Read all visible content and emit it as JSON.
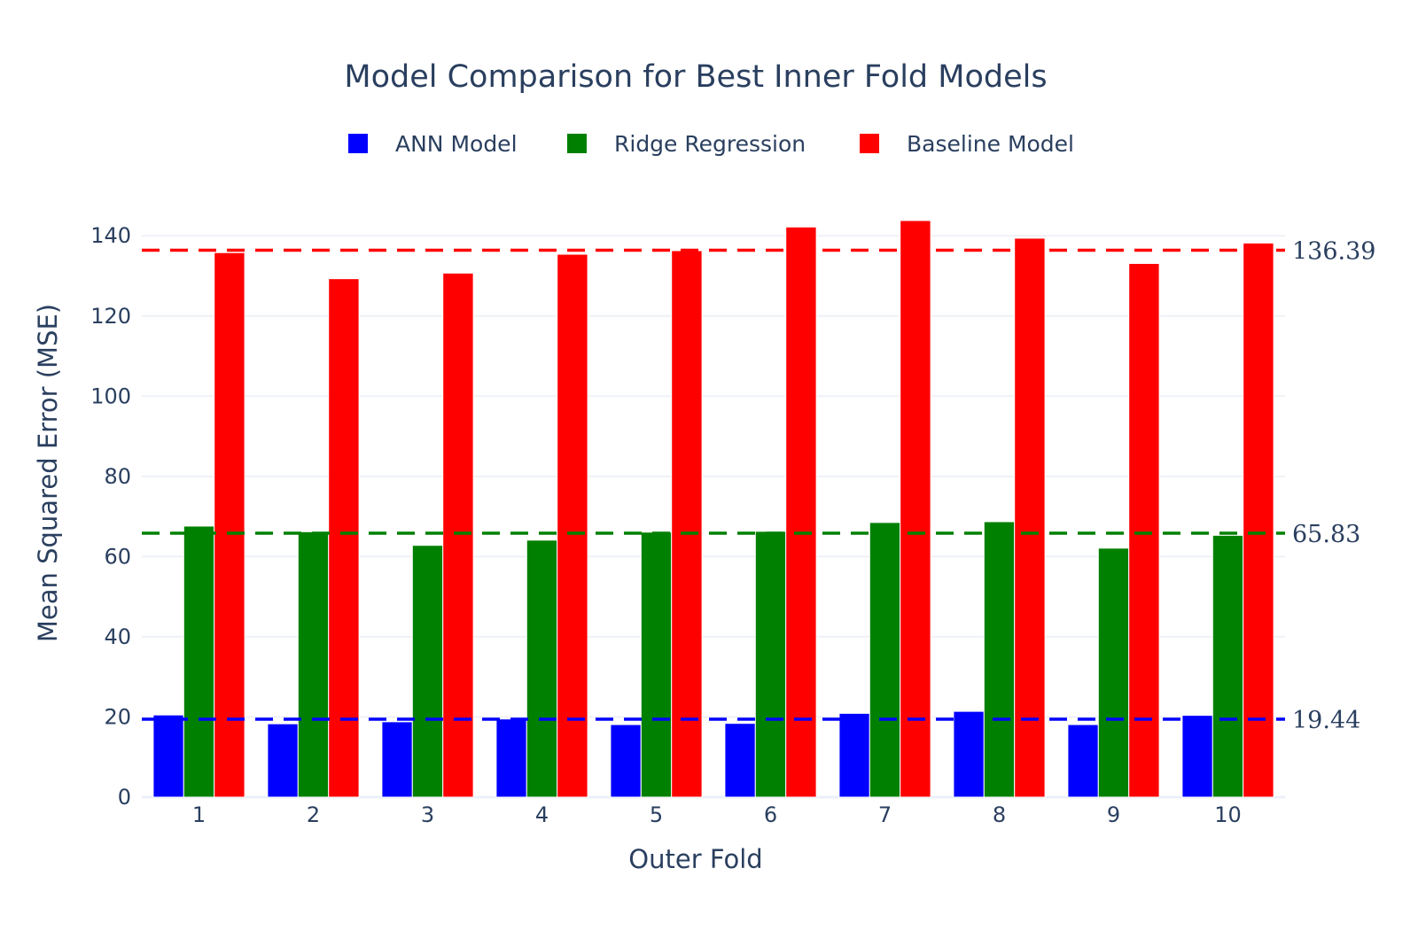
{
  "chart_data": {
    "type": "bar",
    "title": "Model Comparison for Best Inner Fold Models",
    "xlabel": "Outer Fold",
    "ylabel": "Mean Squared Error (MSE)",
    "categories": [
      "1",
      "2",
      "3",
      "4",
      "5",
      "6",
      "7",
      "8",
      "9",
      "10"
    ],
    "ylim": [
      0,
      148
    ],
    "yticks": [
      0,
      20,
      40,
      60,
      80,
      100,
      120,
      140
    ],
    "grid": true,
    "legend_position": "top-center",
    "series": [
      {
        "name": "ANN Model",
        "color": "#0000ff",
        "values": [
          20.5,
          18.3,
          18.8,
          19.5,
          18.1,
          18.4,
          20.9,
          21.4,
          18.1,
          20.4
        ]
      },
      {
        "name": "Ridge Regression",
        "color": "#008000",
        "values": [
          67.6,
          66.2,
          62.8,
          64.1,
          66.1,
          66.3,
          68.5,
          68.7,
          62.1,
          65.3
        ]
      },
      {
        "name": "Baseline Model",
        "color": "#ff0000",
        "values": [
          135.8,
          129.3,
          130.7,
          135.4,
          136.3,
          142.2,
          143.8,
          139.4,
          133.1,
          138.2
        ]
      }
    ],
    "reference_lines": [
      {
        "value": 136.39,
        "label": "136.39",
        "color": "#ff0000"
      },
      {
        "value": 65.83,
        "label": "65.83",
        "color": "#008000"
      },
      {
        "value": 19.44,
        "label": "19.44",
        "color": "#0000ff"
      }
    ]
  }
}
